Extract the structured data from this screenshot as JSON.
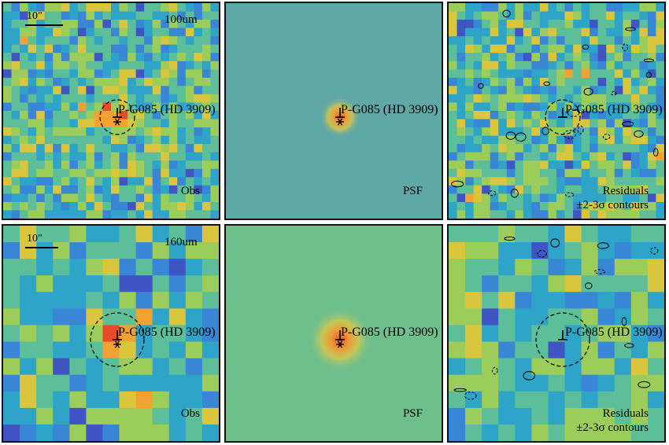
{
  "source_name": "P-G085 (HD 3909)",
  "rows": [
    {
      "band": "100um",
      "scale_text": "10\"",
      "panels": [
        {
          "kind": "observed",
          "label": "Obs",
          "grid": 26,
          "seed": 11
        },
        {
          "kind": "psf",
          "label": "PSF",
          "grid": 26,
          "seed": 0
        },
        {
          "kind": "residual",
          "label": "Residuals",
          "note": "±2-3σ contours",
          "grid": 26,
          "seed": 23
        }
      ]
    },
    {
      "band": "160um",
      "scale_text": "10\"",
      "panels": [
        {
          "kind": "observed",
          "label": "Obs",
          "grid": 13,
          "seed": 37
        },
        {
          "kind": "psf",
          "label": "PSF",
          "grid": 13,
          "seed": 0
        },
        {
          "kind": "residual",
          "label": "Residuals",
          "note": "±2-3σ contours",
          "grid": 13,
          "seed": 51
        }
      ]
    }
  ],
  "colors": {
    "cmap": [
      "#3b1c8c",
      "#3f55c4",
      "#3a86d6",
      "#2ea5c8",
      "#5cbf9a",
      "#9ccc5a",
      "#d9c63d",
      "#f2a233",
      "#e84a2a"
    ],
    "psf_background_100": "#5fa8a6",
    "psf_background_160": "#6fbf8c",
    "frame": "#111111"
  }
}
